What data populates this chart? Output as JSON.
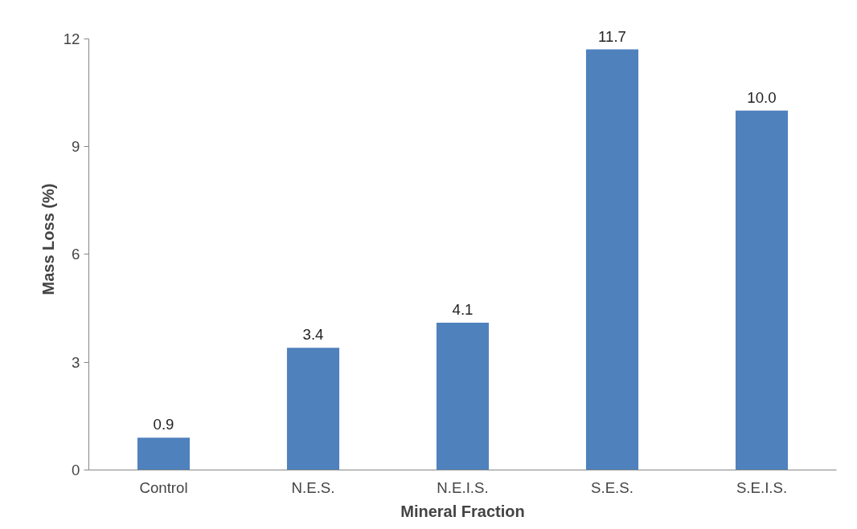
{
  "chart_data": {
    "type": "bar",
    "xlabel": "Mineral Fraction",
    "ylabel": "Mass Loss (%)",
    "categories": [
      "Control",
      "N.E.S.",
      "N.E.I.S.",
      "S.E.S.",
      "S.E.I.S."
    ],
    "values": [
      0.9,
      3.4,
      4.1,
      11.7,
      10.0
    ],
    "color": "#4f81bd",
    "ylim": [
      0,
      12
    ],
    "yticks": [
      0,
      3,
      6,
      9,
      12
    ],
    "value_labels": [
      "0.9",
      "3.4",
      "4.1",
      "11.7",
      "10.0"
    ],
    "grid": false
  }
}
